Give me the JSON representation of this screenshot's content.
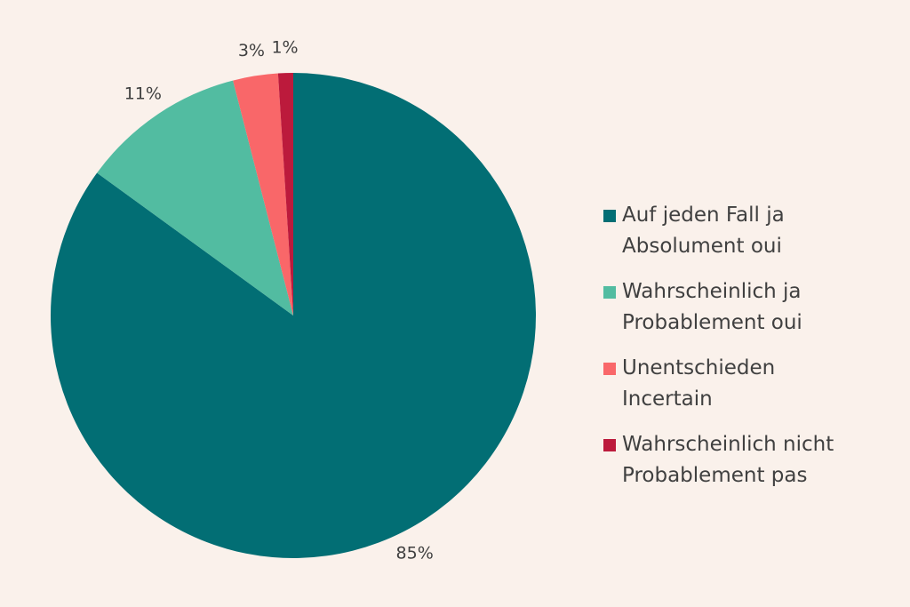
{
  "chart_data": {
    "type": "pie",
    "title": "",
    "legend_position": "right",
    "slices": [
      {
        "name_line1": "Auf jeden Fall ja",
        "name_line2": "Absolument oui",
        "value": 85,
        "label": "85%",
        "color": "#026e74"
      },
      {
        "name_line1": "Wahrscheinlich ja",
        "name_line2": "Probablement oui",
        "value": 11,
        "label": "11%",
        "color": "#52bca1"
      },
      {
        "name_line1": "Unentschieden",
        "name_line2": "Incertain",
        "value": 3,
        "label": "3%",
        "color": "#f96769"
      },
      {
        "name_line1": "Wahrscheinlich nicht",
        "name_line2": "Probablement pas",
        "value": 1,
        "label": "1%",
        "color": "#bc1a3c"
      }
    ]
  }
}
